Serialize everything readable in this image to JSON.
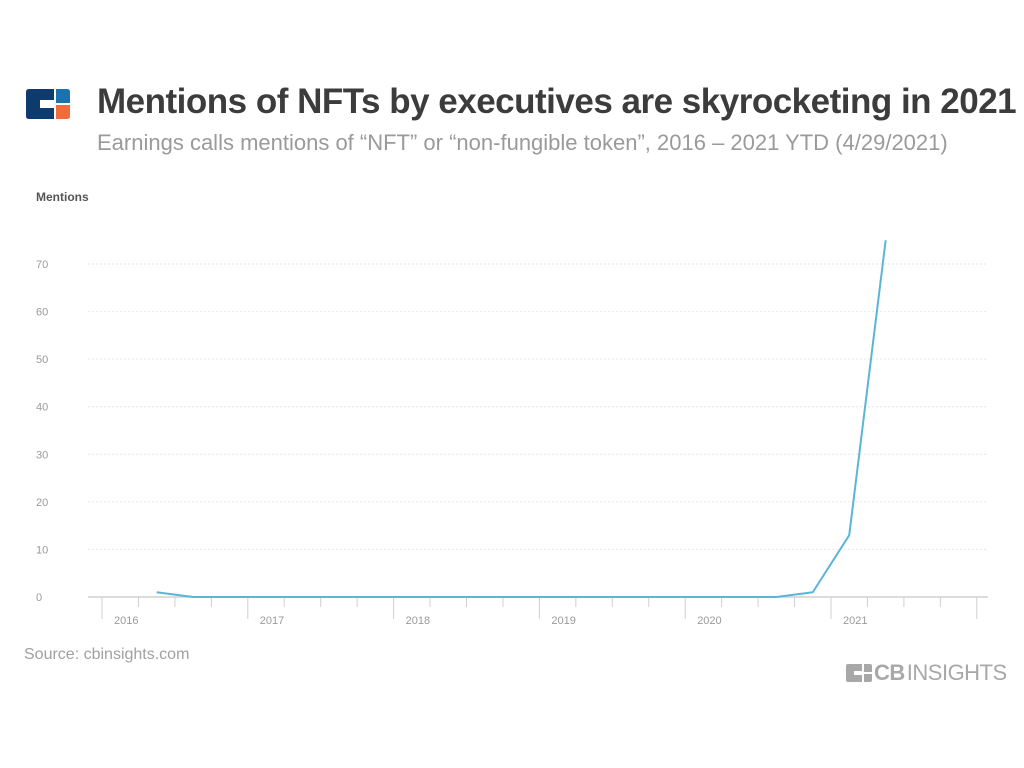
{
  "header": {
    "title": "Mentions of NFTs by executives are skyrocketing in 2021",
    "subtitle": "Earnings calls mentions of “NFT” or “non-fungible token”, 2016 – 2021 YTD (4/29/2021)"
  },
  "footer": {
    "source": "Source: cbinsights.com",
    "brand_bold": "CB",
    "brand_rest": "INSIGHTS"
  },
  "colors": {
    "line": "#5bb5d8",
    "logo_navy": "#0d3b6e",
    "logo_blue": "#1a73b0",
    "logo_orange": "#f26b3a"
  },
  "chart_data": {
    "type": "line",
    "title": "Mentions of NFTs by executives are skyrocketing in 2021",
    "ylabel": "Mentions",
    "xlabel": "",
    "ylim": [
      0,
      70
    ],
    "yticks": [
      0,
      10,
      20,
      30,
      40,
      50,
      60,
      70
    ],
    "xtick_labels": [
      "2016",
      "2017",
      "2018",
      "2019",
      "2020",
      "2021"
    ],
    "grid": true,
    "x": [
      "2016-Q2",
      "2016-Q3",
      "2016-Q4",
      "2017-Q1",
      "2017-Q2",
      "2017-Q3",
      "2017-Q4",
      "2018-Q1",
      "2018-Q2",
      "2018-Q3",
      "2018-Q4",
      "2019-Q1",
      "2019-Q2",
      "2019-Q3",
      "2019-Q4",
      "2020-Q1",
      "2020-Q2",
      "2020-Q3",
      "2020-Q4",
      "2021-Q1",
      "2021-Q2"
    ],
    "values": [
      1,
      0,
      0,
      0,
      0,
      0,
      0,
      0,
      0,
      0,
      0,
      0,
      0,
      0,
      0,
      0,
      0,
      0,
      1,
      13,
      75
    ]
  }
}
